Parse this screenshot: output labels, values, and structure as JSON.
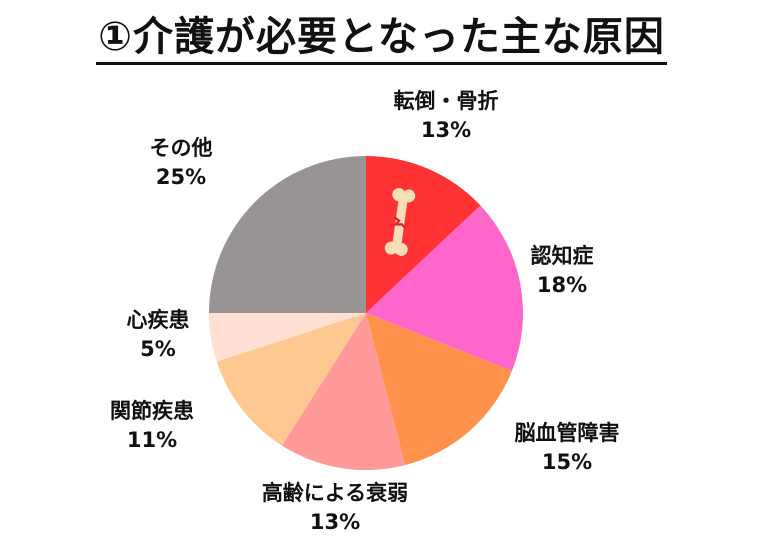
{
  "title": "①介護が必要となった主な原因",
  "chart_data": {
    "type": "pie",
    "start": "12 o'clock",
    "direction": "clockwise",
    "slices": [
      {
        "label": "転倒・骨折",
        "value": 13,
        "value_label": "13%",
        "color": "#ff3333",
        "icon": "bone-icon"
      },
      {
        "label": "認知症",
        "value": 18,
        "value_label": "18%",
        "color": "#ff66cc"
      },
      {
        "label": "脳血管障害",
        "value": 15,
        "value_label": "15%",
        "color": "#ff914d"
      },
      {
        "label": "高齢による衰弱",
        "value": 13,
        "value_label": "13%",
        "color": "#ff999a"
      },
      {
        "label": "関節疾患",
        "value": 11,
        "value_label": "11%",
        "color": "#ffc890"
      },
      {
        "label": "心疾患",
        "value": 5,
        "value_label": "5%",
        "color": "#ffe0d3"
      },
      {
        "label": "その他",
        "value": 25,
        "value_label": "25%",
        "color": "#989494"
      }
    ]
  }
}
